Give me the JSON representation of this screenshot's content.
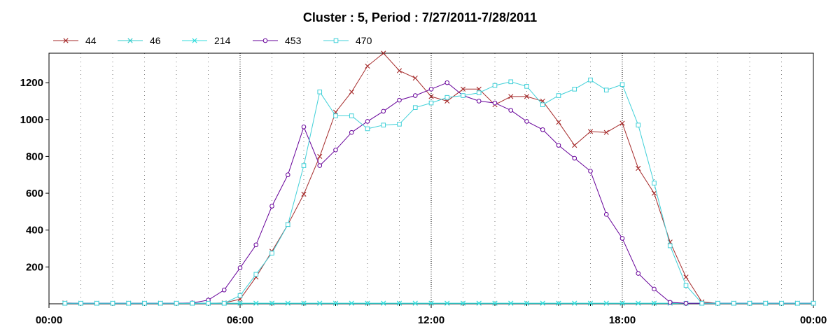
{
  "chart_data": {
    "type": "line",
    "title": "Cluster : 5, Period : 7/27/2011-7/28/2011",
    "xlabel": "",
    "ylabel": "",
    "x_unit": "hours",
    "xlim": [
      0,
      24
    ],
    "ylim": [
      0,
      1360
    ],
    "x_ticks": [
      0,
      6,
      12,
      18,
      24
    ],
    "x_tick_labels": [
      "00:00",
      "06:00",
      "12:00",
      "18:00",
      "00:00"
    ],
    "y_ticks": [
      200,
      400,
      600,
      800,
      1000,
      1200
    ],
    "y_tick_labels": [
      "200",
      "400",
      "600",
      "800",
      "1000",
      "1200"
    ],
    "grid": true,
    "legend_position": "top-left",
    "x": [
      0.5,
      1.0,
      1.5,
      2.0,
      2.5,
      3.0,
      3.5,
      4.0,
      4.5,
      5.0,
      5.5,
      6.0,
      6.5,
      7.0,
      7.5,
      8.0,
      8.5,
      9.0,
      9.5,
      10.0,
      10.5,
      11.0,
      11.5,
      12.0,
      12.5,
      13.0,
      13.5,
      14.0,
      14.5,
      15.0,
      15.5,
      16.0,
      16.5,
      17.0,
      17.5,
      18.0,
      18.5,
      19.0,
      19.5,
      20.0,
      20.5,
      21.0,
      21.5,
      22.0,
      22.5,
      23.0,
      23.5,
      24.0
    ],
    "series": [
      {
        "name": "44",
        "color": "#a52a2a",
        "marker": "x",
        "values": [
          5,
          3,
          3,
          3,
          3,
          3,
          3,
          3,
          3,
          3,
          5,
          25,
          145,
          285,
          430,
          595,
          800,
          1040,
          1150,
          1290,
          1360,
          1265,
          1225,
          1125,
          1100,
          1165,
          1165,
          1080,
          1125,
          1125,
          1100,
          985,
          860,
          935,
          930,
          980,
          735,
          600,
          335,
          145,
          10,
          3,
          3,
          3,
          3,
          3,
          3,
          3
        ]
      },
      {
        "name": "46",
        "color": "#33cccc",
        "marker": "star",
        "values": [
          3,
          3,
          3,
          3,
          3,
          3,
          3,
          3,
          3,
          3,
          3,
          3,
          3,
          3,
          3,
          3,
          3,
          3,
          3,
          3,
          3,
          3,
          3,
          3,
          3,
          3,
          3,
          3,
          3,
          3,
          3,
          3,
          3,
          3,
          3,
          3,
          3,
          3,
          3,
          3,
          3,
          3,
          3,
          3,
          3,
          3,
          3,
          3
        ]
      },
      {
        "name": "214",
        "color": "#33dddd",
        "marker": "x",
        "values": [
          3,
          3,
          3,
          3,
          3,
          3,
          3,
          3,
          3,
          3,
          3,
          3,
          3,
          3,
          3,
          3,
          3,
          3,
          3,
          3,
          3,
          3,
          3,
          3,
          3,
          3,
          3,
          3,
          3,
          3,
          3,
          3,
          3,
          3,
          3,
          3,
          3,
          3,
          3,
          3,
          3,
          3,
          3,
          3,
          3,
          3,
          3,
          3
        ]
      },
      {
        "name": "453",
        "color": "#660099",
        "marker": "circle",
        "values": [
          3,
          3,
          3,
          3,
          3,
          3,
          3,
          3,
          5,
          20,
          75,
          195,
          320,
          530,
          700,
          960,
          750,
          835,
          930,
          990,
          1045,
          1105,
          1130,
          1165,
          1200,
          1130,
          1100,
          1090,
          1050,
          990,
          945,
          860,
          790,
          720,
          485,
          355,
          165,
          80,
          8,
          3,
          3,
          3,
          3,
          3,
          3,
          3,
          3,
          3
        ]
      },
      {
        "name": "470",
        "color": "#40d0d8",
        "marker": "square",
        "values": [
          3,
          3,
          3,
          3,
          3,
          3,
          3,
          3,
          3,
          3,
          3,
          45,
          160,
          275,
          430,
          750,
          1150,
          1020,
          1020,
          950,
          970,
          975,
          1065,
          1090,
          1120,
          1130,
          1145,
          1185,
          1205,
          1180,
          1080,
          1130,
          1165,
          1215,
          1160,
          1190,
          970,
          655,
          315,
          100,
          3,
          3,
          3,
          3,
          3,
          3,
          3,
          3
        ]
      }
    ]
  }
}
